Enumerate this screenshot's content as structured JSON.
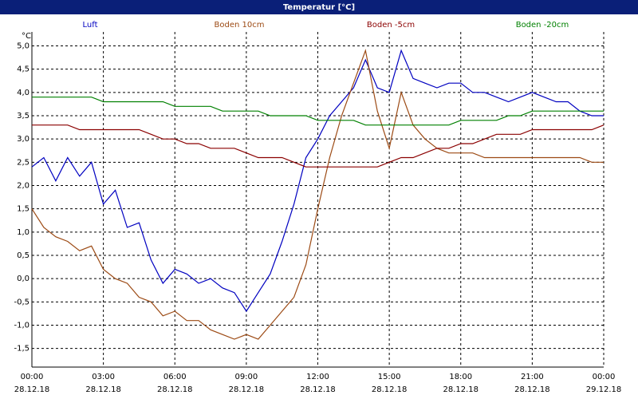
{
  "chart_data": {
    "type": "line",
    "title": "Temperatur [°C]",
    "y_label": "°C",
    "x": [
      0,
      0.5,
      1,
      1.5,
      2,
      2.5,
      3,
      3.5,
      4,
      4.5,
      5,
      5.5,
      6,
      6.5,
      7,
      7.5,
      8,
      8.5,
      9,
      9.5,
      10,
      10.5,
      11,
      11.5,
      12,
      12.5,
      13,
      13.5,
      14,
      14.5,
      15,
      15.5,
      16,
      16.5,
      17,
      17.5,
      18,
      18.5,
      19,
      19.5,
      20,
      20.5,
      21,
      21.5,
      22,
      22.5,
      23,
      23.5,
      24
    ],
    "xlim": [
      0,
      24
    ],
    "xticks": [
      {
        "value": 0,
        "label": "00:00\n28.12.18"
      },
      {
        "value": 3,
        "label": "03:00\n28.12.18"
      },
      {
        "value": 6,
        "label": "06:00\n28.12.18"
      },
      {
        "value": 9,
        "label": "09:00\n28.12.18"
      },
      {
        "value": 12,
        "label": "12:00\n28.12.18"
      },
      {
        "value": 15,
        "label": "15:00\n28.12.18"
      },
      {
        "value": 18,
        "label": "18:00\n28.12.18"
      },
      {
        "value": 21,
        "label": "21:00\n28.12.18"
      },
      {
        "value": 24,
        "label": "00:00\n29.12.18"
      }
    ],
    "ylim": [
      -1.9,
      5.3
    ],
    "yticks": [
      {
        "value": 5,
        "label": "5,0"
      },
      {
        "value": 4.5,
        "label": "4,5"
      },
      {
        "value": 4,
        "label": "4,0"
      },
      {
        "value": 3.5,
        "label": "3,5"
      },
      {
        "value": 3,
        "label": "3,0"
      },
      {
        "value": 2.5,
        "label": "2,5"
      },
      {
        "value": 2,
        "label": "2,0"
      },
      {
        "value": 1.5,
        "label": "1,5"
      },
      {
        "value": 1,
        "label": "1,0"
      },
      {
        "value": 0.5,
        "label": "0,5"
      },
      {
        "value": 0,
        "label": "0,0"
      },
      {
        "value": -0.5,
        "label": "-0,5"
      },
      {
        "value": -1,
        "label": "-1,0"
      },
      {
        "value": -1.5,
        "label": "-1,5"
      }
    ],
    "grid": true,
    "series": [
      {
        "name": "Luft",
        "color": "#0000c0",
        "values": [
          2.4,
          2.6,
          2.1,
          2.6,
          2.2,
          2.5,
          1.6,
          1.9,
          1.1,
          1.2,
          0.4,
          -0.1,
          0.2,
          0.1,
          -0.1,
          0.0,
          -0.2,
          -0.3,
          -0.7,
          -0.3,
          0.1,
          0.8,
          1.6,
          2.6,
          3.0,
          3.5,
          3.8,
          4.1,
          4.7,
          4.1,
          4.0,
          4.9,
          4.3,
          4.2,
          4.1,
          4.2,
          4.2,
          4.0,
          4.0,
          3.9,
          3.8,
          3.9,
          4.0,
          3.9,
          3.8,
          3.8,
          3.6,
          3.5,
          3.5
        ]
      },
      {
        "name": "Boden 10cm",
        "color": "#9c4a14",
        "values": [
          1.5,
          1.1,
          0.9,
          0.8,
          0.6,
          0.7,
          0.2,
          0.0,
          -0.1,
          -0.4,
          -0.5,
          -0.8,
          -0.7,
          -0.9,
          -0.9,
          -1.1,
          -1.2,
          -1.3,
          -1.2,
          -1.3,
          -1.0,
          -0.7,
          -0.4,
          0.3,
          1.5,
          2.6,
          3.5,
          4.2,
          4.9,
          3.6,
          2.8,
          4.0,
          3.3,
          3.0,
          2.8,
          2.7,
          2.7,
          2.7,
          2.6,
          2.6,
          2.6,
          2.6,
          2.6,
          2.6,
          2.6,
          2.6,
          2.6,
          2.5,
          2.5
        ]
      },
      {
        "name": "Boden -5cm",
        "color": "#8b0000",
        "values": [
          3.3,
          3.3,
          3.3,
          3.3,
          3.2,
          3.2,
          3.2,
          3.2,
          3.2,
          3.2,
          3.1,
          3.0,
          3.0,
          2.9,
          2.9,
          2.8,
          2.8,
          2.8,
          2.7,
          2.6,
          2.6,
          2.6,
          2.5,
          2.4,
          2.4,
          2.4,
          2.4,
          2.4,
          2.4,
          2.4,
          2.5,
          2.6,
          2.6,
          2.7,
          2.8,
          2.8,
          2.9,
          2.9,
          3.0,
          3.1,
          3.1,
          3.1,
          3.2,
          3.2,
          3.2,
          3.2,
          3.2,
          3.2,
          3.3
        ]
      },
      {
        "name": "Boden -20cm",
        "color": "#008000",
        "values": [
          3.9,
          3.9,
          3.9,
          3.9,
          3.9,
          3.9,
          3.8,
          3.8,
          3.8,
          3.8,
          3.8,
          3.8,
          3.7,
          3.7,
          3.7,
          3.7,
          3.6,
          3.6,
          3.6,
          3.6,
          3.5,
          3.5,
          3.5,
          3.5,
          3.4,
          3.4,
          3.4,
          3.4,
          3.3,
          3.3,
          3.3,
          3.3,
          3.3,
          3.3,
          3.3,
          3.3,
          3.4,
          3.4,
          3.4,
          3.4,
          3.5,
          3.5,
          3.6,
          3.6,
          3.6,
          3.6,
          3.6,
          3.6,
          3.6
        ]
      }
    ]
  }
}
